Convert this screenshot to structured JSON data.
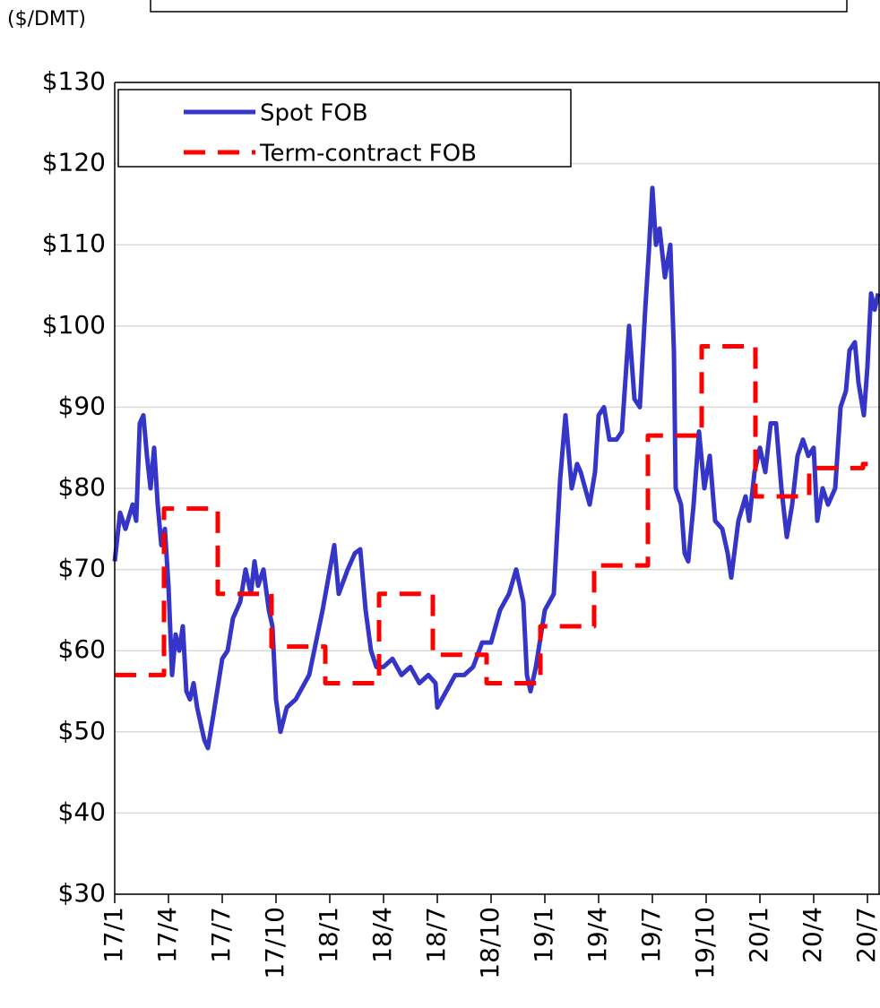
{
  "chart_data": {
    "type": "line",
    "y_axis_label": "($/DMT)",
    "xlim": [
      0,
      42.7
    ],
    "xticks": [
      {
        "value": 0,
        "label": "17/1"
      },
      {
        "value": 3,
        "label": "17/4"
      },
      {
        "value": 6,
        "label": "17/7"
      },
      {
        "value": 9,
        "label": "17/10"
      },
      {
        "value": 12,
        "label": "18/1"
      },
      {
        "value": 15,
        "label": "18/4"
      },
      {
        "value": 18,
        "label": "18/7"
      },
      {
        "value": 21,
        "label": "18/10"
      },
      {
        "value": 24,
        "label": "19/1"
      },
      {
        "value": 27,
        "label": "19/4"
      },
      {
        "value": 30,
        "label": "19/7"
      },
      {
        "value": 33,
        "label": "19/10"
      },
      {
        "value": 36,
        "label": "20/1"
      },
      {
        "value": 39,
        "label": "20/4"
      },
      {
        "value": 42,
        "label": "20/7"
      }
    ],
    "ylim": [
      30,
      130
    ],
    "yticks": [
      {
        "value": 30,
        "label": "$30"
      },
      {
        "value": 40,
        "label": "$40"
      },
      {
        "value": 50,
        "label": "$50"
      },
      {
        "value": 60,
        "label": "$60"
      },
      {
        "value": 70,
        "label": "$70"
      },
      {
        "value": 80,
        "label": "$80"
      },
      {
        "value": 90,
        "label": "$90"
      },
      {
        "value": 100,
        "label": "$100"
      },
      {
        "value": 110,
        "label": "$110"
      },
      {
        "value": 120,
        "label": "$120"
      },
      {
        "value": 130,
        "label": "$130"
      }
    ],
    "grid": true,
    "legend": "upper left",
    "series": [
      {
        "name": "Spot FOB",
        "color": "#3535c8",
        "dash": false,
        "step": false,
        "x": [
          0,
          0.3,
          0.6,
          1,
          1.2,
          1.4,
          1.6,
          1.8,
          2,
          2.2,
          2.4,
          2.6,
          2.8,
          3,
          3.2,
          3.4,
          3.6,
          3.8,
          4,
          4.2,
          4.4,
          4.6,
          4.8,
          5,
          5.2,
          5.5,
          6,
          6.3,
          6.6,
          7,
          7.3,
          7.6,
          7.8,
          8,
          8.3,
          8.6,
          8.8,
          9,
          9.25,
          9.6,
          10.1,
          10.85,
          11.6,
          12.25,
          12.5,
          13,
          13.4,
          13.7,
          14,
          14.3,
          14.6,
          15,
          15.5,
          16,
          16.5,
          17,
          17.5,
          17.9,
          18,
          18.5,
          19,
          19.5,
          20,
          20.5,
          21,
          21.5,
          22,
          22.4,
          22.8,
          23,
          23.2,
          23.5,
          24,
          24.5,
          24.85,
          25.15,
          25.5,
          25.8,
          26,
          26.5,
          26.8,
          27,
          27.3,
          27.6,
          28,
          28.3,
          28.7,
          29,
          29.3,
          29.6,
          29.8,
          30,
          30.2,
          30.4,
          30.7,
          31,
          31.2,
          31.3,
          31.6,
          31.8,
          32,
          32.3,
          32.6,
          32.9,
          33.2,
          33.5,
          33.9,
          34.2,
          34.4,
          34.8,
          35.2,
          35.4,
          35.7,
          36,
          36.3,
          36.6,
          36.9,
          37.2,
          37.5,
          37.8,
          38.1,
          38.4,
          38.7,
          39,
          39.2,
          39.5,
          39.8,
          40.2,
          40.5,
          40.8,
          41,
          41.3,
          41.5,
          41.8,
          42,
          42.2,
          42.4,
          42.6
        ],
        "values": [
          71,
          77,
          75,
          78,
          76,
          88,
          89,
          84,
          80,
          85,
          78,
          73,
          75,
          68,
          57,
          62,
          60,
          63,
          55,
          54,
          56,
          53,
          51,
          49,
          48,
          52,
          59,
          60,
          64,
          66,
          70,
          67,
          71,
          68,
          70,
          65,
          63,
          54,
          50,
          53,
          54,
          57,
          65,
          73,
          67,
          70,
          72,
          72.5,
          65,
          60,
          58,
          58,
          59,
          57,
          58,
          56,
          57,
          56,
          53,
          55,
          57,
          57,
          58,
          61,
          61,
          65,
          67,
          70,
          66,
          57,
          55,
          58,
          65,
          67,
          81,
          89,
          80,
          83,
          82,
          78,
          82,
          89,
          90,
          86,
          86,
          87,
          100,
          91,
          90,
          102,
          109,
          117,
          110,
          112,
          106,
          110,
          97,
          80,
          78,
          72,
          71,
          78,
          87,
          80,
          84,
          76,
          75,
          72,
          69,
          76,
          79,
          76,
          82,
          85,
          82,
          88,
          88,
          80,
          74,
          78,
          84,
          86,
          84,
          85,
          76,
          80,
          78,
          80,
          90,
          92,
          97,
          98,
          93,
          89,
          95,
          104,
          102,
          104
        ]
      },
      {
        "name": "Term-contract FOB",
        "color": "#ff0000",
        "dash": true,
        "step": true,
        "x": [
          0,
          2.75,
          5.75,
          8.75,
          11.75,
          14.75,
          17.75,
          20.75,
          23.75,
          26.75,
          29.75,
          32.75,
          35.75,
          38.75,
          41.75
        ],
        "values": [
          57,
          77.5,
          67,
          60.5,
          56,
          67,
          59.5,
          56,
          63,
          70.5,
          86.5,
          97.5,
          79,
          82.5,
          83
        ]
      }
    ]
  }
}
